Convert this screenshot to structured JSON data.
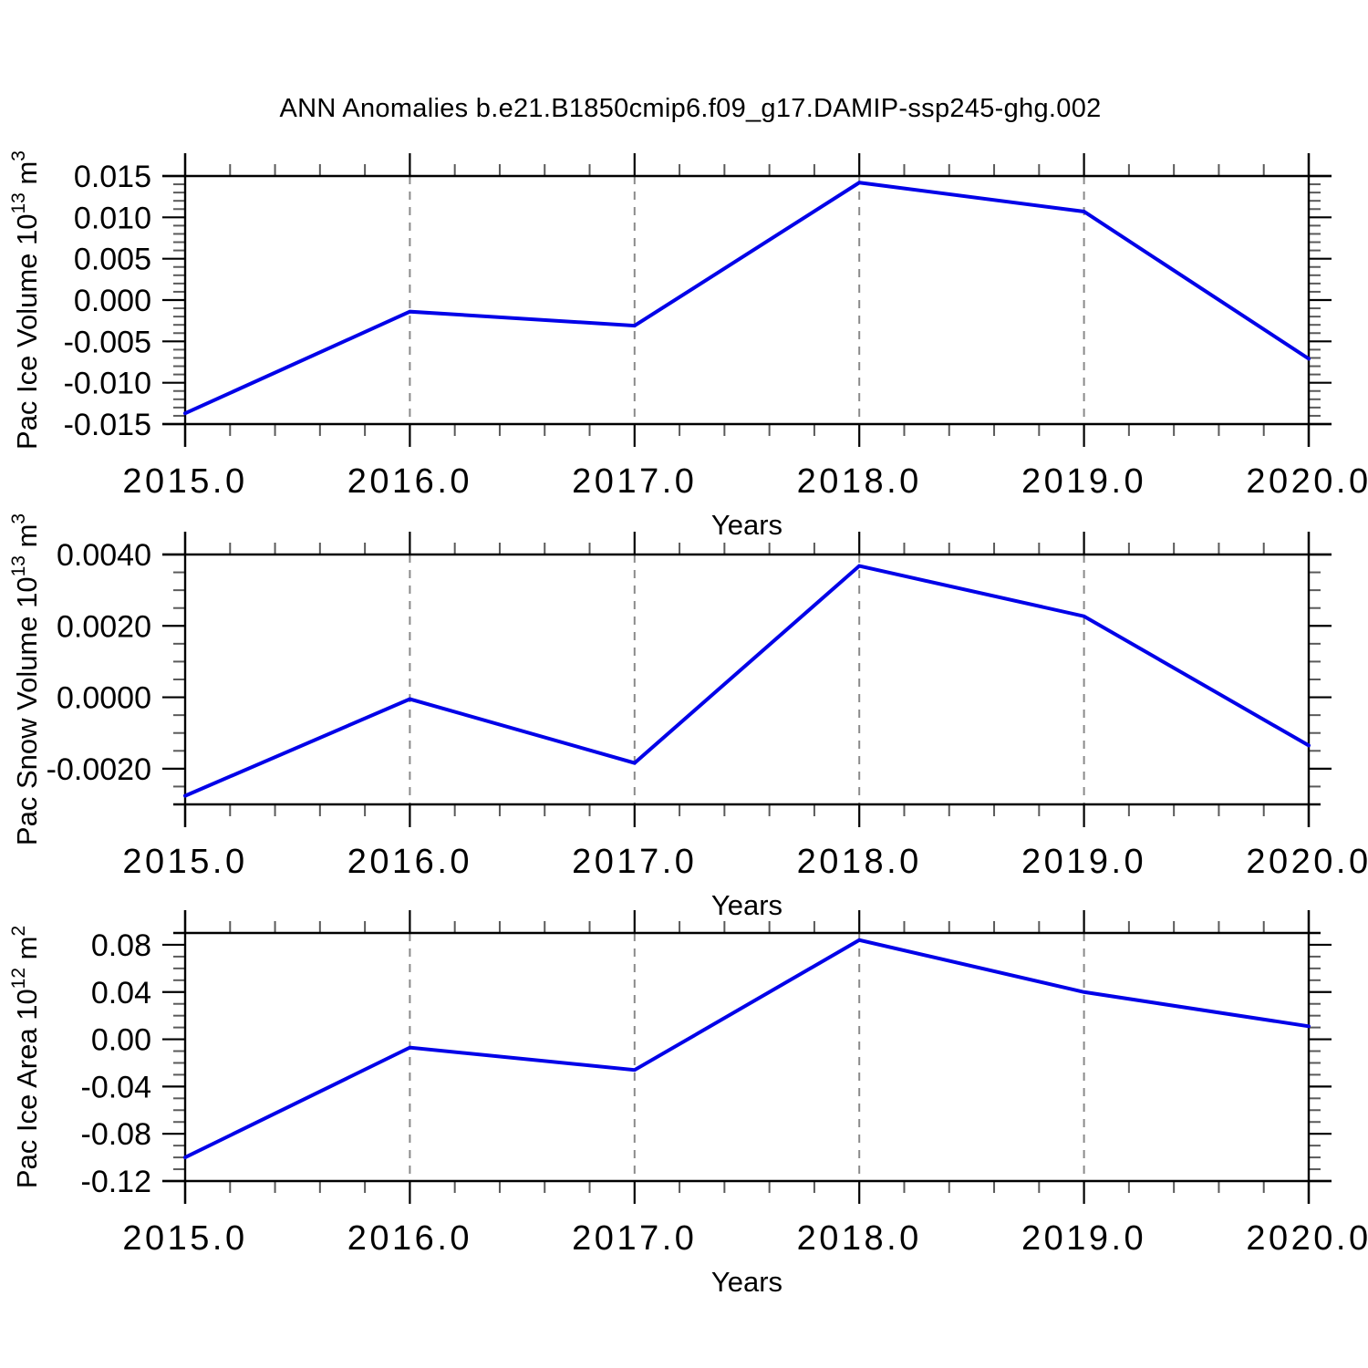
{
  "title": "ANN Anomalies b.e21.B1850cmip6.f09_g17.DAMIP-ssp245-ghg.002",
  "colors": {
    "line": "#0202e8",
    "grid": "#8a8a8a",
    "frame": "#000000",
    "minor_tick": "#5a5a5a",
    "background": "#ffffff"
  },
  "chart_data": [
    {
      "type": "line",
      "ylabel_text": "Pac Ice Volume 10^13 m^3",
      "ylabel_parts": [
        "Pac Ice Volume 10",
        {
          "sup": "13"
        },
        " m",
        {
          "sup": "3"
        }
      ],
      "xlabel": "Years",
      "x": [
        2015.0,
        2016.0,
        2017.0,
        2018.0,
        2019.0,
        2020.0
      ],
      "y": [
        -0.0137,
        -0.0014,
        -0.0031,
        0.0142,
        0.0107,
        -0.0071
      ],
      "xlim": [
        2015.0,
        2020.0
      ],
      "ylim": [
        -0.015,
        0.015
      ],
      "xtick_values": [
        2015,
        2016,
        2017,
        2018,
        2019,
        2020
      ],
      "xtick_labels": [
        "2015.0",
        "2016.0",
        "2017.0",
        "2018.0",
        "2019.0",
        "2020.0"
      ],
      "x_minor_step": 0.2,
      "ytick_values": [
        0.015,
        0.01,
        0.005,
        0.0,
        -0.005,
        -0.01,
        -0.015
      ],
      "ytick_labels": [
        "0.015",
        "0.010",
        "0.005",
        "0.000",
        "-0.005",
        "-0.010",
        "-0.015"
      ],
      "y_minor_step": 0.001,
      "gridlines_x": [
        2016,
        2017,
        2018,
        2019
      ],
      "grid_style": "vertical-dashed",
      "legend": "none"
    },
    {
      "type": "line",
      "ylabel_text": "Pac Snow Volume 10^13 m^3",
      "ylabel_parts": [
        "Pac Snow Volume 10",
        {
          "sup": "13"
        },
        " m",
        {
          "sup": "3"
        }
      ],
      "xlabel": "Years",
      "x": [
        2015.0,
        2016.0,
        2017.0,
        2018.0,
        2019.0,
        2020.0
      ],
      "y": [
        -0.00276,
        -5e-05,
        -0.00184,
        0.00368,
        0.00227,
        -0.00135
      ],
      "xlim": [
        2015.0,
        2020.0
      ],
      "ylim": [
        -0.003,
        0.004
      ],
      "xtick_values": [
        2015,
        2016,
        2017,
        2018,
        2019,
        2020
      ],
      "xtick_labels": [
        "2015.0",
        "2016.0",
        "2017.0",
        "2018.0",
        "2019.0",
        "2020.0"
      ],
      "x_minor_step": 0.2,
      "ytick_values": [
        0.004,
        0.002,
        0.0,
        -0.002
      ],
      "ytick_labels": [
        "0.0040",
        "0.0020",
        "0.0000",
        "-0.0020"
      ],
      "y_minor_step": 0.0005,
      "gridlines_x": [
        2016,
        2017,
        2018,
        2019
      ],
      "grid_style": "vertical-dashed",
      "legend": "none"
    },
    {
      "type": "line",
      "ylabel_text": "Pac Ice Area 10^12 m^2",
      "ylabel_parts": [
        "Pac Ice Area 10",
        {
          "sup": "12"
        },
        " m",
        {
          "sup": "2"
        }
      ],
      "xlabel": "Years",
      "x": [
        2015.0,
        2016.0,
        2017.0,
        2018.0,
        2019.0,
        2020.0
      ],
      "y": [
        -0.1,
        -0.007,
        -0.026,
        0.084,
        0.04,
        0.011
      ],
      "xlim": [
        2015.0,
        2020.0
      ],
      "ylim": [
        -0.12,
        0.09
      ],
      "xtick_values": [
        2015,
        2016,
        2017,
        2018,
        2019,
        2020
      ],
      "xtick_labels": [
        "2015.0",
        "2016.0",
        "2017.0",
        "2018.0",
        "2019.0",
        "2020.0"
      ],
      "x_minor_step": 0.2,
      "ytick_values": [
        0.08,
        0.04,
        0.0,
        -0.04,
        -0.08,
        -0.12
      ],
      "ytick_labels": [
        "0.08",
        "0.04",
        "0.00",
        "-0.04",
        "-0.08",
        "-0.12"
      ],
      "y_minor_step": 0.01,
      "gridlines_x": [
        2016,
        2017,
        2018,
        2019
      ],
      "grid_style": "vertical-dashed",
      "legend": "none"
    }
  ]
}
